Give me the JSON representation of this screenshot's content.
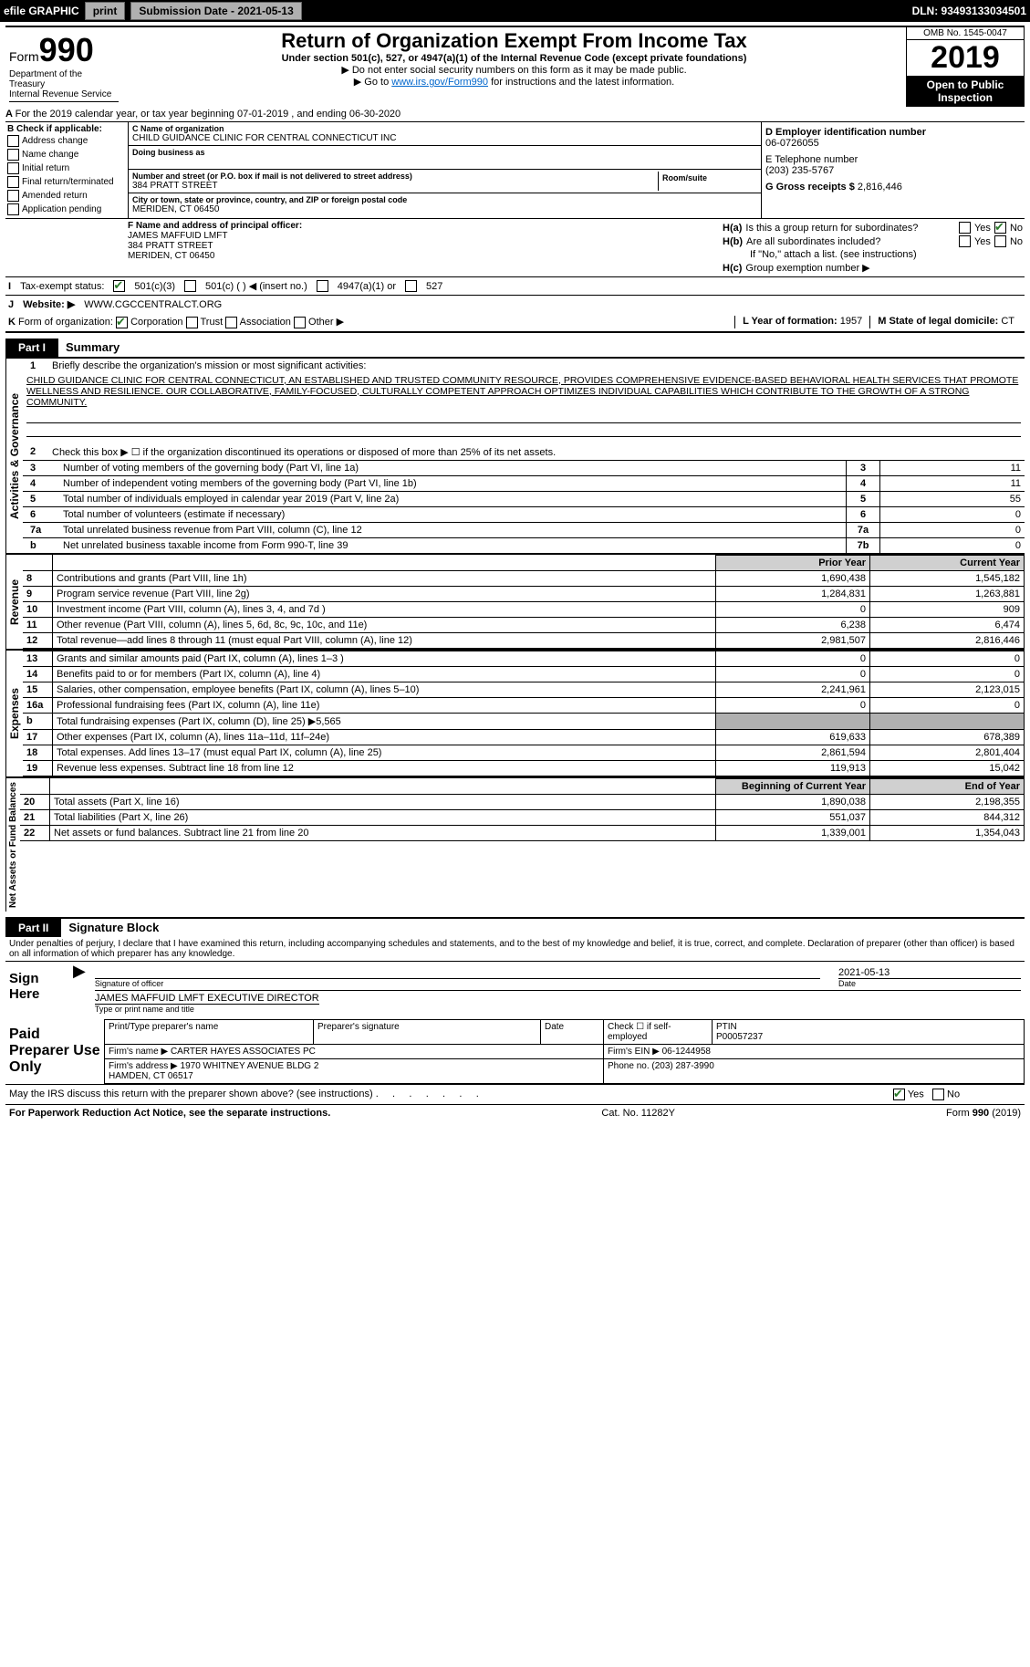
{
  "toolbar": {
    "efile": "efile GRAPHIC",
    "print": "print",
    "submission_label": "Submission Date - 2021-05-13",
    "dln": "DLN: 93493133034501"
  },
  "header": {
    "form_prefix": "Form",
    "form_number": "990",
    "title": "Return of Organization Exempt From Income Tax",
    "subtitle": "Under section 501(c), 527, or 4947(a)(1) of the Internal Revenue Code (except private foundations)",
    "note1": "▶ Do not enter social security numbers on this form as it may be made public.",
    "note2_pre": "▶ Go to ",
    "note2_link": "www.irs.gov/Form990",
    "note2_post": " for instructions and the latest information.",
    "dept": "Department of the Treasury\nInternal Revenue Service",
    "omb": "OMB No. 1545-0047",
    "year": "2019",
    "open": "Open to Public Inspection"
  },
  "line_a": "For the 2019 calendar year, or tax year beginning 07-01-2019    , and ending 06-30-2020",
  "box_b": {
    "header": "B Check if applicable:",
    "items": [
      "Address change",
      "Name change",
      "Initial return",
      "Final return/terminated",
      "Amended return",
      "Application pending"
    ]
  },
  "box_c": {
    "name_lbl": "C Name of organization",
    "name": "CHILD GUIDANCE CLINIC FOR CENTRAL CONNECTICUT INC",
    "dba_lbl": "Doing business as",
    "addr_lbl": "Number and street (or P.O. box if mail is not delivered to street address)",
    "addr": "384 PRATT STREET",
    "room_lbl": "Room/suite",
    "city_lbl": "City or town, state or province, country, and ZIP or foreign postal code",
    "city": "MERIDEN, CT  06450"
  },
  "box_d": {
    "ein_lbl": "D Employer identification number",
    "ein": "06-0726055",
    "tel_lbl": "E Telephone number",
    "tel": "(203) 235-5767",
    "gross_lbl": "G Gross receipts $",
    "gross": "2,816,446"
  },
  "box_f": {
    "lbl": "F Name and address of principal officer:",
    "name": "JAMES MAFFUID LMFT",
    "addr": "384 PRATT STREET",
    "city": "MERIDEN, CT  06450"
  },
  "box_h": {
    "a_lbl": "H(a)",
    "a_text": "Is this a group return for subordinates?",
    "b_lbl": "H(b)",
    "b_text": "Are all subordinates included?",
    "b_note": "If \"No,\" attach a list. (see instructions)",
    "c_lbl": "H(c)",
    "c_text": "Group exemption number ▶",
    "yes": "Yes",
    "no": "No"
  },
  "row_i": {
    "lbl": "I",
    "text": "Tax-exempt status:",
    "opts": [
      "501(c)(3)",
      "501(c) (  ) ◀ (insert no.)",
      "4947(a)(1) or",
      "527"
    ]
  },
  "row_j": {
    "lbl": "J",
    "text": "Website: ▶",
    "val": "WWW.CGCCENTRALCT.ORG"
  },
  "row_k": {
    "lbl": "K",
    "text": "Form of organization:",
    "opts": [
      "Corporation",
      "Trust",
      "Association",
      "Other ▶"
    ],
    "l_lbl": "L Year of formation:",
    "l_val": "1957",
    "m_lbl": "M State of legal domicile:",
    "m_val": "CT"
  },
  "part1": {
    "tab": "Part I",
    "title": "Summary",
    "q1_lbl": "1",
    "q1_text": "Briefly describe the organization's mission or most significant activities:",
    "mission": "CHILD GUIDANCE CLINIC FOR CENTRAL CONNECTICUT, AN ESTABLISHED AND TRUSTED COMMUNITY RESOURCE, PROVIDES COMPREHENSIVE EVIDENCE-BASED BEHAVIORAL HEALTH SERVICES THAT PROMOTE WELLNESS AND RESILIENCE. OUR COLLABORATIVE, FAMILY-FOCUSED, CULTURALLY COMPETENT APPROACH OPTIMIZES INDIVIDUAL CAPABILITIES WHICH CONTRIBUTE TO THE GROWTH OF A STRONG COMMUNITY.",
    "q2_text": "Check this box ▶ ☐  if the organization discontinued its operations or disposed of more than 25% of its net assets.",
    "side1": "Activities & Governance",
    "rows_gov": [
      {
        "n": "3",
        "t": "Number of voting members of the governing body (Part VI, line 1a)",
        "box": "3",
        "v": "11"
      },
      {
        "n": "4",
        "t": "Number of independent voting members of the governing body (Part VI, line 1b)",
        "box": "4",
        "v": "11"
      },
      {
        "n": "5",
        "t": "Total number of individuals employed in calendar year 2019 (Part V, line 2a)",
        "box": "5",
        "v": "55"
      },
      {
        "n": "6",
        "t": "Total number of volunteers (estimate if necessary)",
        "box": "6",
        "v": "0"
      },
      {
        "n": "7a",
        "t": "Total unrelated business revenue from Part VIII, column (C), line 12",
        "box": "7a",
        "v": "0"
      },
      {
        "n": "b",
        "t": "Net unrelated business taxable income from Form 990-T, line 39",
        "box": "7b",
        "v": "0"
      }
    ],
    "col_prior": "Prior Year",
    "col_current": "Current Year",
    "side2": "Revenue",
    "rows_rev": [
      {
        "n": "8",
        "t": "Contributions and grants (Part VIII, line 1h)",
        "p": "1,690,438",
        "c": "1,545,182"
      },
      {
        "n": "9",
        "t": "Program service revenue (Part VIII, line 2g)",
        "p": "1,284,831",
        "c": "1,263,881"
      },
      {
        "n": "10",
        "t": "Investment income (Part VIII, column (A), lines 3, 4, and 7d )",
        "p": "0",
        "c": "909"
      },
      {
        "n": "11",
        "t": "Other revenue (Part VIII, column (A), lines 5, 6d, 8c, 9c, 10c, and 11e)",
        "p": "6,238",
        "c": "6,474"
      },
      {
        "n": "12",
        "t": "Total revenue—add lines 8 through 11 (must equal Part VIII, column (A), line 12)",
        "p": "2,981,507",
        "c": "2,816,446"
      }
    ],
    "side3": "Expenses",
    "rows_exp": [
      {
        "n": "13",
        "t": "Grants and similar amounts paid (Part IX, column (A), lines 1–3 )",
        "p": "0",
        "c": "0"
      },
      {
        "n": "14",
        "t": "Benefits paid to or for members (Part IX, column (A), line 4)",
        "p": "0",
        "c": "0"
      },
      {
        "n": "15",
        "t": "Salaries, other compensation, employee benefits (Part IX, column (A), lines 5–10)",
        "p": "2,241,961",
        "c": "2,123,015"
      },
      {
        "n": "16a",
        "t": "Professional fundraising fees (Part IX, column (A), line 11e)",
        "p": "0",
        "c": "0"
      },
      {
        "n": "b",
        "t": "Total fundraising expenses (Part IX, column (D), line 25) ▶5,565",
        "p": "grey",
        "c": "grey"
      },
      {
        "n": "17",
        "t": "Other expenses (Part IX, column (A), lines 11a–11d, 11f–24e)",
        "p": "619,633",
        "c": "678,389"
      },
      {
        "n": "18",
        "t": "Total expenses. Add lines 13–17 (must equal Part IX, column (A), line 25)",
        "p": "2,861,594",
        "c": "2,801,404"
      },
      {
        "n": "19",
        "t": "Revenue less expenses. Subtract line 18 from line 12",
        "p": "119,913",
        "c": "15,042"
      }
    ],
    "side4": "Net Assets or Fund Balances",
    "col_beg": "Beginning of Current Year",
    "col_end": "End of Year",
    "rows_net": [
      {
        "n": "20",
        "t": "Total assets (Part X, line 16)",
        "p": "1,890,038",
        "c": "2,198,355"
      },
      {
        "n": "21",
        "t": "Total liabilities (Part X, line 26)",
        "p": "551,037",
        "c": "844,312"
      },
      {
        "n": "22",
        "t": "Net assets or fund balances. Subtract line 21 from line 20",
        "p": "1,339,001",
        "c": "1,354,043"
      }
    ]
  },
  "part2": {
    "tab": "Part II",
    "title": "Signature Block",
    "jurat": "Under penalties of perjury, I declare that I have examined this return, including accompanying schedules and statements, and to the best of my knowledge and belief, it is true, correct, and complete. Declaration of preparer (other than officer) is based on all information of which preparer has any knowledge.",
    "sign_here": "Sign Here",
    "sig_officer_lbl": "Signature of officer",
    "date_lbl": "Date",
    "sig_date": "2021-05-13",
    "name_title": "JAMES MAFFUID LMFT EXECUTIVE DIRECTOR",
    "name_title_lbl": "Type or print name and title",
    "paid_lbl": "Paid Preparer Use Only",
    "prep_name_lbl": "Print/Type preparer's name",
    "prep_sig_lbl": "Preparer's signature",
    "prep_date_lbl": "Date",
    "self_emp": "Check ☐ if self-employed",
    "ptin_lbl": "PTIN",
    "ptin": "P00057237",
    "firm_name_lbl": "Firm's name    ▶",
    "firm_name": "CARTER HAYES ASSOCIATES PC",
    "firm_ein_lbl": "Firm's EIN ▶",
    "firm_ein": "06-1244958",
    "firm_addr_lbl": "Firm's address ▶",
    "firm_addr": "1970 WHITNEY AVENUE BLDG 2\nHAMDEN, CT  06517",
    "phone_lbl": "Phone no.",
    "phone": "(203) 287-3990",
    "discuss": "May the IRS discuss this return with the preparer shown above? (see instructions)",
    "yes": "Yes",
    "no": "No"
  },
  "footer": {
    "left": "For Paperwork Reduction Act Notice, see the separate instructions.",
    "mid": "Cat. No. 11282Y",
    "right": "Form 990 (2019)"
  }
}
